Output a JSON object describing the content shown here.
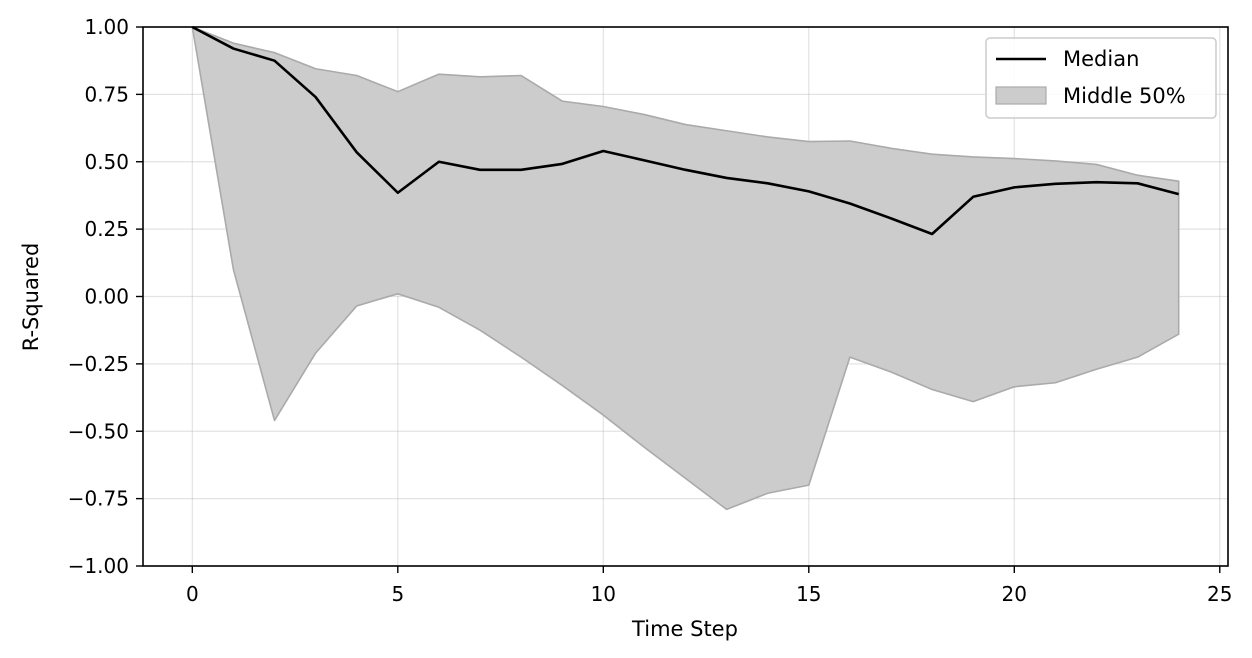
{
  "chart_data": {
    "type": "line",
    "xlabel": "Time Step",
    "ylabel": "R-Squared",
    "xlim": [
      -1.2,
      25.2
    ],
    "ylim": [
      -1.0,
      1.0
    ],
    "x_ticks": [
      0,
      5,
      10,
      15,
      20,
      25
    ],
    "y_ticks": [
      -1.0,
      -0.75,
      -0.5,
      -0.25,
      0.0,
      0.25,
      0.5,
      0.75,
      1.0
    ],
    "x_tick_labels": [
      "0",
      "5",
      "10",
      "15",
      "20",
      "25"
    ],
    "y_tick_labels": [
      "−1.00",
      "−0.75",
      "−0.50",
      "−0.25",
      "0.00",
      "0.25",
      "0.50",
      "0.75",
      "1.00"
    ],
    "grid": true,
    "legend_position": "top-right",
    "x": [
      0,
      1,
      2,
      3,
      4,
      5,
      6,
      7,
      8,
      9,
      10,
      11,
      12,
      13,
      14,
      15,
      16,
      17,
      18,
      19,
      20,
      21,
      22,
      23,
      24
    ],
    "series": [
      {
        "name": "Median",
        "kind": "line",
        "color": "#000000",
        "values": [
          1.0,
          0.92,
          0.875,
          0.74,
          0.535,
          0.385,
          0.5,
          0.47,
          0.47,
          0.492,
          0.54,
          0.505,
          0.47,
          0.44,
          0.42,
          0.39,
          0.345,
          0.29,
          0.232,
          0.37,
          0.405,
          0.418,
          0.424,
          0.42,
          0.38
        ]
      },
      {
        "name": "Middle 50%",
        "kind": "band",
        "color": "#cccccc",
        "edge_color": "#aaaaaa",
        "lower": [
          1.0,
          0.1,
          -0.46,
          -0.21,
          -0.035,
          0.01,
          -0.04,
          -0.125,
          -0.225,
          -0.33,
          -0.44,
          -0.56,
          -0.675,
          -0.79,
          -0.73,
          -0.7,
          -0.225,
          -0.28,
          -0.345,
          -0.39,
          -0.335,
          -0.32,
          -0.27,
          -0.225,
          -0.14
        ],
        "upper": [
          1.0,
          0.94,
          0.905,
          0.845,
          0.82,
          0.76,
          0.825,
          0.815,
          0.82,
          0.725,
          0.705,
          0.675,
          0.638,
          0.615,
          0.592,
          0.575,
          0.577,
          0.55,
          0.528,
          0.518,
          0.512,
          0.503,
          0.49,
          0.45,
          0.428
        ]
      }
    ]
  }
}
